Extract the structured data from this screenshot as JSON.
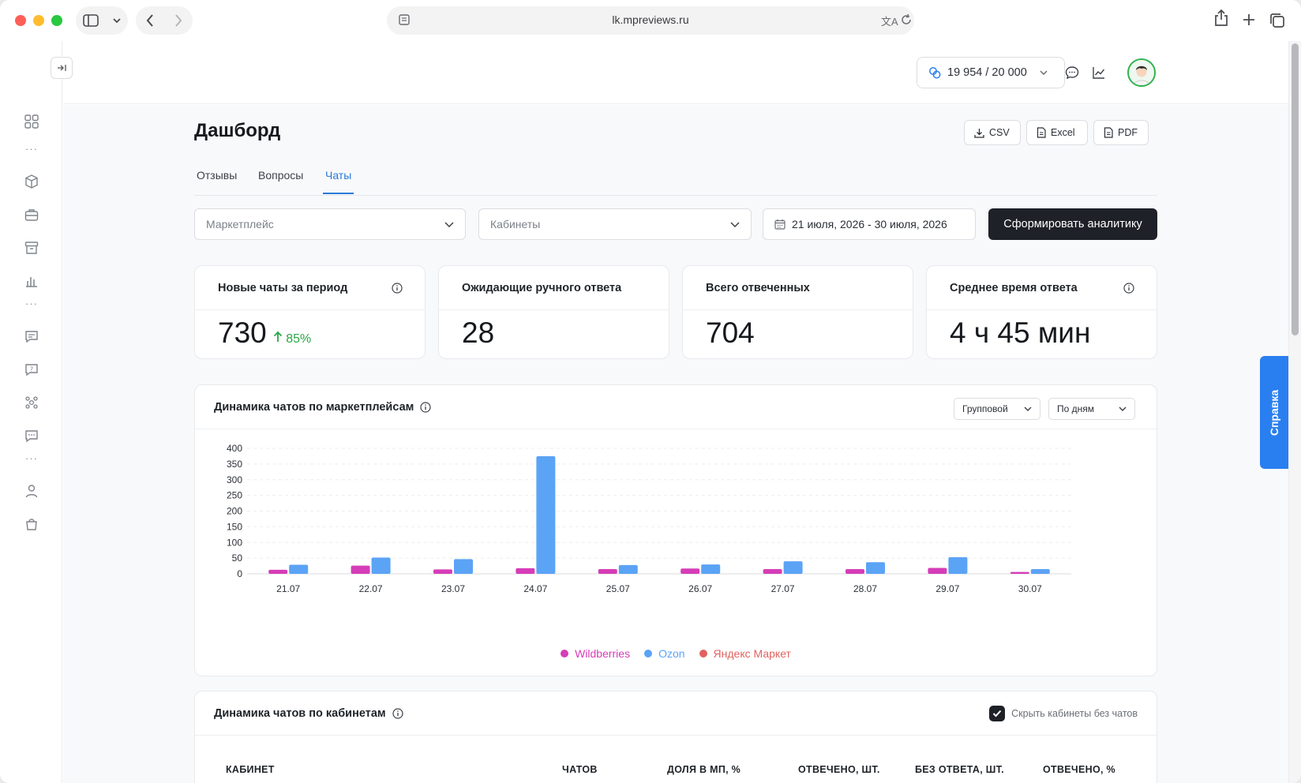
{
  "browser": {
    "url": "lk.mpreviews.ru"
  },
  "header": {
    "credits": "19 954 / 20 000"
  },
  "page": {
    "title": "Дашборд",
    "exports": {
      "csv": "CSV",
      "excel": "Excel",
      "pdf": "PDF"
    },
    "tabs": [
      {
        "label": "Отзывы",
        "active": false
      },
      {
        "label": "Вопросы",
        "active": false
      },
      {
        "label": "Чаты",
        "active": true
      }
    ]
  },
  "filters": {
    "marketplace_placeholder": "Маркетплейс",
    "cabinets_placeholder": "Кабинеты",
    "date_range": "21 июля, 2026 - 30 июля, 2026",
    "submit_label": "Сформировать аналитику"
  },
  "kpis": [
    {
      "label": "Новые чаты за период",
      "value": "730",
      "delta": "85%",
      "has_info": true
    },
    {
      "label": "Ожидающие ручного ответа",
      "value": "28",
      "delta": "",
      "has_info": false
    },
    {
      "label": "Всего отвеченных",
      "value": "704",
      "delta": "",
      "has_info": false
    },
    {
      "label": "Среднее время ответа",
      "value": "4 ч 45 мин",
      "delta": "",
      "has_info": true
    }
  ],
  "chart_card": {
    "title": "Динамика чатов по маркетплейсам",
    "mode_select": "Групповой",
    "period_select": "По дням"
  },
  "chart_data": {
    "type": "bar",
    "categories": [
      "21.07",
      "22.07",
      "23.07",
      "24.07",
      "25.07",
      "26.07",
      "27.07",
      "28.07",
      "29.07",
      "30.07"
    ],
    "series": [
      {
        "name": "Wildberries",
        "color": "#d63db8",
        "values": [
          13,
          26,
          14,
          18,
          15,
          17,
          15,
          15,
          19,
          6
        ]
      },
      {
        "name": "Ozon",
        "color": "#5ba3f5",
        "values": [
          29,
          52,
          47,
          375,
          28,
          30,
          40,
          37,
          53,
          15
        ]
      },
      {
        "name": "Яндекс Маркет",
        "color": "#e0625f",
        "values": [
          0,
          0,
          0,
          0,
          0,
          0,
          0,
          0,
          0,
          0
        ]
      }
    ],
    "y_ticks": [
      0,
      50,
      100,
      150,
      200,
      250,
      300,
      350,
      400
    ],
    "ylim": [
      0,
      400
    ],
    "grid": true,
    "legend": "bottom-center"
  },
  "table_card": {
    "title": "Динамика чатов по кабинетам",
    "hide_empty_label": "Скрыть кабинеты без чатов",
    "hide_empty_checked": true,
    "columns": [
      "КАБИНЕТ",
      "ЧАТОВ",
      "ДОЛЯ В МП, %",
      "ОТВЕЧЕНО, ШТ.",
      "БЕЗ ОТВЕТА, ШТ.",
      "ОТВЕЧЕНО, %"
    ]
  },
  "help_tab": "Справка"
}
